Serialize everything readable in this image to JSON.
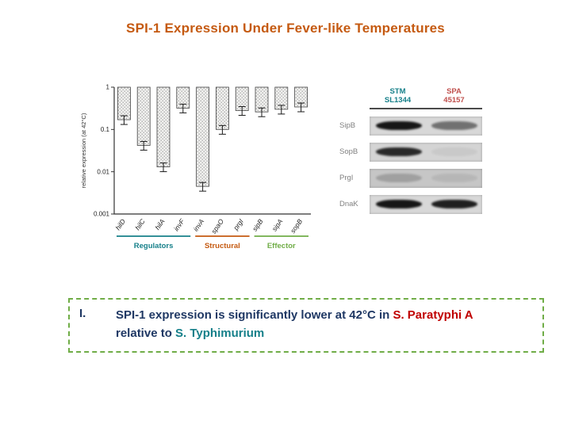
{
  "title": "SPI-1 Expression Under Fever-like Temperatures",
  "accents": {
    "title": "#c55a11",
    "navy": "#1f3864",
    "spa_red": "#c00000",
    "stm_teal": "#17808a",
    "box_green": "#70ad47"
  },
  "chart_data": {
    "type": "bar",
    "title": "",
    "ylabel": "relative expression (at 42°C)",
    "log_scale": true,
    "ylim": [
      0.001,
      1
    ],
    "baseline": 1,
    "yticks": [
      "1",
      "0.1",
      "0.01",
      "0.001"
    ],
    "categories": [
      "hilD",
      "hilC",
      "hilA",
      "invF",
      "invA",
      "spaO",
      "prgI",
      "sipB",
      "sipA",
      "sopB"
    ],
    "values": [
      0.17,
      0.042,
      0.013,
      0.32,
      0.0045,
      0.1,
      0.28,
      0.26,
      0.3,
      0.34
    ],
    "errors": [
      0.05,
      0.01,
      0.004,
      0.1,
      0.001,
      0.03,
      0.08,
      0.07,
      0.09,
      0.1
    ],
    "legend": [],
    "grid": false,
    "groups": [
      {
        "label": "Regulators",
        "color": "#17808a",
        "start": 0,
        "end": 3
      },
      {
        "label": "Structural",
        "color": "#c55a11",
        "start": 4,
        "end": 6
      },
      {
        "label": "Effector",
        "color": "#70ad47",
        "start": 7,
        "end": 9
      }
    ]
  },
  "blot": {
    "columns": [
      {
        "label": "STM\nSL1344",
        "color": "#17808a"
      },
      {
        "label": "SPA\n45157",
        "color": "#c0504d"
      }
    ],
    "rows": [
      {
        "label": "SipB",
        "panel": "#d8d8d8",
        "bands": [
          0.95,
          0.5
        ]
      },
      {
        "label": "SopB",
        "panel": "#d4d4d4",
        "bands": [
          0.85,
          0.05
        ]
      },
      {
        "label": "PrgI",
        "panel": "#c6c6c6",
        "bands": [
          0.2,
          0.08
        ]
      },
      {
        "label": "DnaK",
        "panel": "#d8d8d8",
        "bands": [
          0.95,
          0.9
        ]
      }
    ]
  },
  "conclusion": {
    "number": "I.",
    "part1": "SPI-1 expression is significantly lower at 42°C in ",
    "spa": "S. Paratyphi A",
    "part2": "relative to ",
    "stm": "S. Typhimurium"
  }
}
